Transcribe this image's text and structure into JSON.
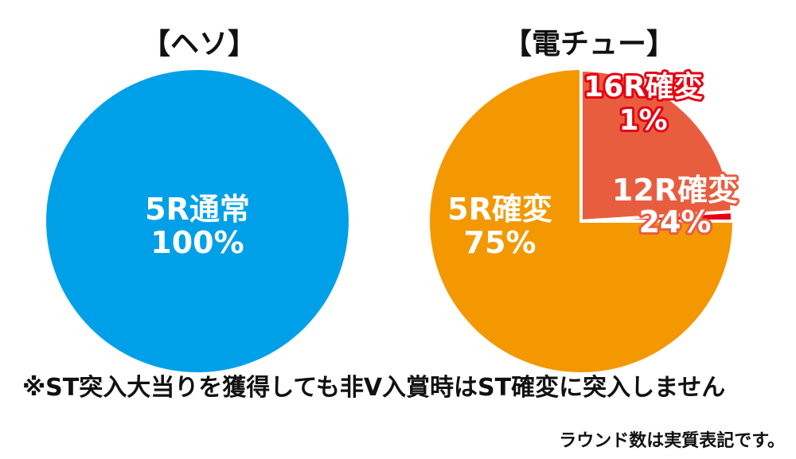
{
  "chart_data": [
    {
      "type": "pie",
      "title": "【ヘソ】",
      "slices": [
        {
          "label": "5R通常",
          "value": 100,
          "value_text": "100%",
          "color": "#00a0e9"
        }
      ]
    },
    {
      "type": "pie",
      "title": "【電チュー】",
      "slices": [
        {
          "label": "5R確変",
          "value": 75,
          "value_text": "75%",
          "color": "#f39800"
        },
        {
          "label": "12R確変",
          "value": 24,
          "value_text": "24%",
          "color": "#e95d3f"
        },
        {
          "label": "16R確変",
          "value": 1,
          "value_text": "1%",
          "color": "#e60012"
        }
      ]
    }
  ],
  "note": "※ST突入大当りを獲得しても非V入賞時はST確変に突入しません",
  "footnote": "ラウンド数は実質表記です。",
  "colors": {
    "label_text": "#ffffff",
    "outline": "#ffffff"
  }
}
